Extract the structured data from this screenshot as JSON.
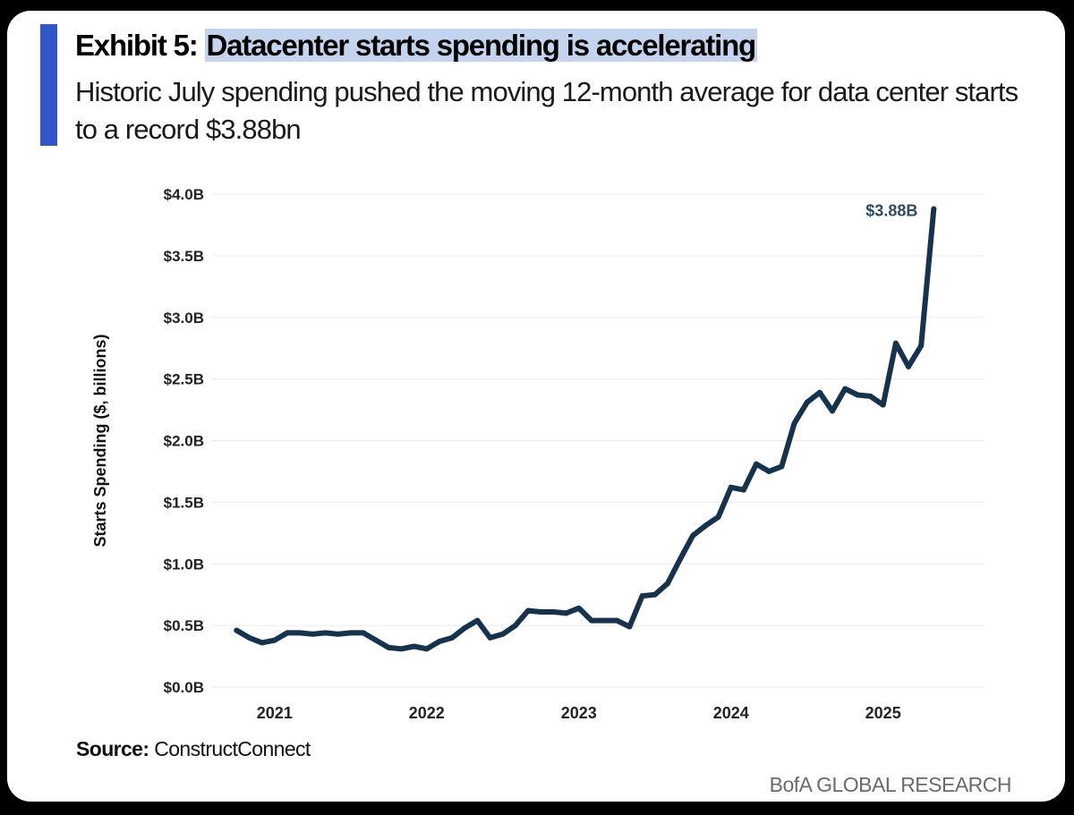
{
  "header": {
    "title_prefix": "Exhibit 5:",
    "title_highlight": "Datacenter starts spending is accelerating",
    "subtitle": "Historic July spending pushed the moving 12-month average for data center starts to a record $3.88bn"
  },
  "footer": {
    "source_label": "Source:",
    "source_value": "ConstructConnect",
    "brand": "BofA GLOBAL RESEARCH"
  },
  "colors": {
    "accent": "#2f55c8",
    "title_highlight": "#c5d4ee",
    "line": "#17324d",
    "grid": "#ececec"
  },
  "chart_data": {
    "type": "line",
    "title": "",
    "xlabel": "",
    "ylabel": "Starts Spending ($, billions)",
    "ylim": [
      0,
      4.0
    ],
    "yticks": [
      0,
      0.5,
      1.0,
      1.5,
      2.0,
      2.5,
      3.0,
      3.5,
      4.0
    ],
    "ytick_labels": [
      "$0.0B",
      "$0.5B",
      "$1.0B",
      "$1.5B",
      "$2.0B",
      "$2.5B",
      "$3.0B",
      "$3.5B",
      "$4.0B"
    ],
    "xlim": [
      "2020-10",
      "2025-11"
    ],
    "xticks": [
      "2021-03",
      "2022-03",
      "2023-03",
      "2024-03",
      "2025-03"
    ],
    "xtick_labels": [
      "2021",
      "2022",
      "2023",
      "2024",
      "2025"
    ],
    "grid": true,
    "legend": "none",
    "annotation": {
      "x": "2025-07",
      "y": 3.88,
      "text": "$3.88B"
    },
    "series": [
      {
        "x": [
          "2020-12",
          "2021-01",
          "2021-02",
          "2021-03",
          "2021-04",
          "2021-05",
          "2021-06",
          "2021-07",
          "2021-08",
          "2021-09",
          "2021-10",
          "2021-11",
          "2021-12",
          "2022-01",
          "2022-02",
          "2022-03",
          "2022-04",
          "2022-05",
          "2022-06",
          "2022-07",
          "2022-08",
          "2022-09",
          "2022-10",
          "2022-11",
          "2022-12",
          "2023-01",
          "2023-02",
          "2023-03",
          "2023-04",
          "2023-05",
          "2023-06",
          "2023-07",
          "2023-08",
          "2023-09",
          "2023-10",
          "2023-11",
          "2023-12",
          "2024-01",
          "2024-02",
          "2024-03",
          "2024-04",
          "2024-05",
          "2024-06",
          "2024-07",
          "2024-08",
          "2024-09",
          "2024-10",
          "2024-11",
          "2024-12",
          "2025-01",
          "2025-02",
          "2025-03",
          "2025-04",
          "2025-05",
          "2025-06",
          "2025-07"
        ],
        "values": [
          0.46,
          0.4,
          0.36,
          0.38,
          0.44,
          0.44,
          0.43,
          0.44,
          0.43,
          0.44,
          0.44,
          0.38,
          0.32,
          0.31,
          0.33,
          0.31,
          0.37,
          0.4,
          0.48,
          0.54,
          0.4,
          0.43,
          0.5,
          0.62,
          0.61,
          0.61,
          0.6,
          0.64,
          0.54,
          0.54,
          0.54,
          0.49,
          0.74,
          0.75,
          0.84,
          1.04,
          1.23,
          1.31,
          1.38,
          1.62,
          1.6,
          1.81,
          1.75,
          1.79,
          2.14,
          2.31,
          2.39,
          2.24,
          2.42,
          2.37,
          2.36,
          2.29,
          2.79,
          2.6,
          2.77,
          3.88
        ]
      }
    ]
  }
}
